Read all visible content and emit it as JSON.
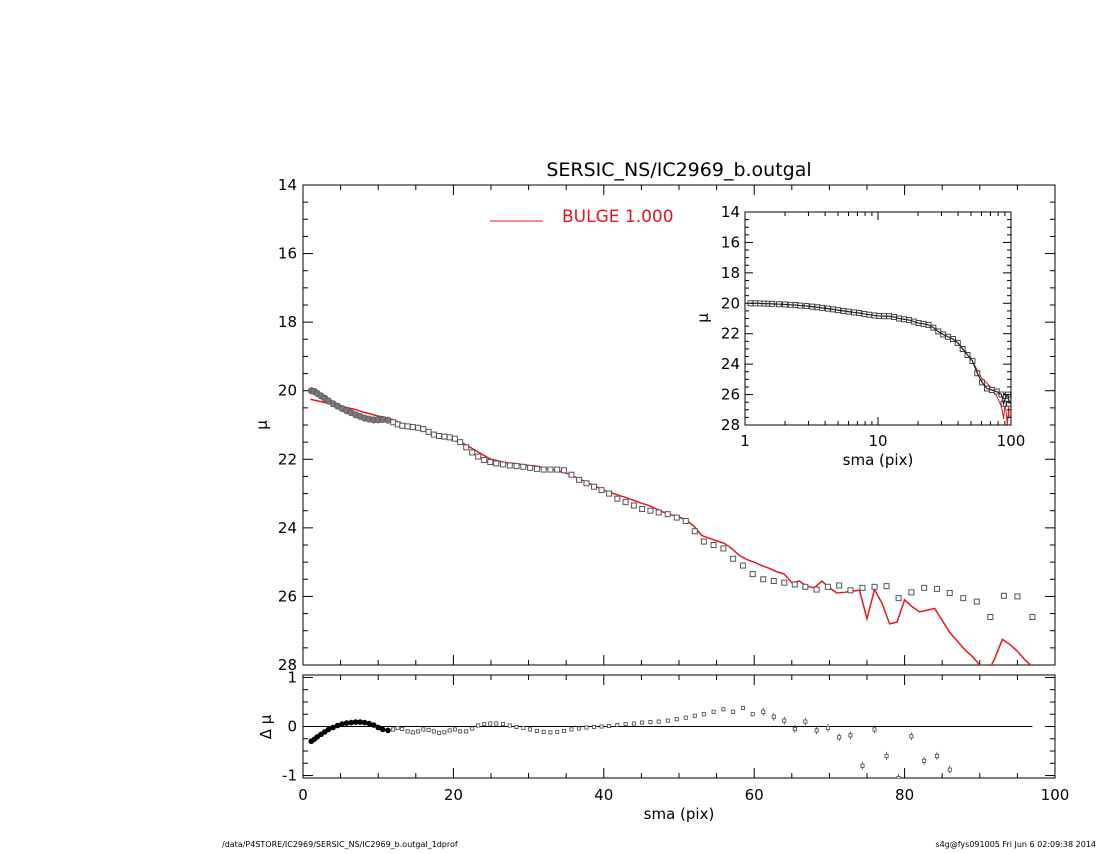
{
  "footer": {
    "left": "/data/P4STORE/IC2969/SERSIC_NS/IC2969_b.outgal_1dprof",
    "right": "s4g@fys091005  Fri Jun  6 02:09:38 2014"
  },
  "colors": {
    "model": "#e8161c",
    "data": "#555555",
    "axes": "#000000"
  },
  "chart_data": [
    {
      "id": "main",
      "type": "scatter",
      "title": "SERSIC_NS/IC2969_b.outgal",
      "xlabel": "",
      "ylabel": "μ",
      "xlim": [
        0,
        100
      ],
      "ylim": [
        28,
        14
      ],
      "y_inverted": true,
      "xticks": [
        0,
        20,
        40,
        60,
        80,
        100
      ],
      "yticks": [
        14,
        16,
        18,
        20,
        22,
        24,
        26,
        28
      ],
      "legend": {
        "placement": "top-center",
        "entries": [
          {
            "label": "BULGE  1.000",
            "color": "#e8161c"
          }
        ]
      },
      "series": [
        {
          "name": "",
          "kind": "data-points",
          "x": [
            1.1,
            1.5,
            1.9,
            2.4,
            2.9,
            3.4,
            4.0,
            4.6,
            5.2,
            5.8,
            6.4,
            7.0,
            7.6,
            8.2,
            8.8,
            9.4,
            10.0,
            10.6,
            11.3,
            12.0,
            12.6,
            13.2,
            13.9,
            14.6,
            15.3,
            16.0,
            16.7,
            17.4,
            18.1,
            18.8,
            19.5,
            20.2,
            20.9,
            21.7,
            22.5,
            23.3,
            24.1,
            24.9,
            25.7,
            26.6,
            27.5,
            28.4,
            29.3,
            30.2,
            31.1,
            32.0,
            32.9,
            33.8,
            34.7,
            35.7,
            36.7,
            37.7,
            38.7,
            39.7,
            40.7,
            41.8,
            42.9,
            44.0,
            45.1,
            46.2,
            47.3,
            48.5,
            49.7,
            50.9,
            52.1,
            53.3,
            54.6,
            55.9,
            57.2,
            58.5,
            59.8,
            61.2,
            62.6,
            64.0,
            65.4,
            66.8,
            68.3,
            69.8,
            71.3,
            72.8,
            74.4,
            76.0,
            77.6,
            79.2,
            80.9,
            82.6,
            84.3,
            86.0,
            87.8,
            89.6,
            91.4,
            93.2,
            95.0,
            97.0
          ],
          "y": [
            20.0,
            20.02,
            20.08,
            20.15,
            20.22,
            20.3,
            20.38,
            20.45,
            20.52,
            20.58,
            20.64,
            20.7,
            20.75,
            20.8,
            20.83,
            20.85,
            20.85,
            20.84,
            20.86,
            20.92,
            20.98,
            21.02,
            21.04,
            21.06,
            21.08,
            21.12,
            21.2,
            21.28,
            21.32,
            21.34,
            21.36,
            21.4,
            21.5,
            21.65,
            21.8,
            21.92,
            22.02,
            22.08,
            22.12,
            22.15,
            22.18,
            22.2,
            22.22,
            22.25,
            22.28,
            22.3,
            22.3,
            22.3,
            22.32,
            22.45,
            22.6,
            22.7,
            22.8,
            22.9,
            23.0,
            23.15,
            23.25,
            23.35,
            23.45,
            23.5,
            23.55,
            23.6,
            23.7,
            23.8,
            24.1,
            24.4,
            24.5,
            24.6,
            24.9,
            25.1,
            25.35,
            25.5,
            25.55,
            25.6,
            25.65,
            25.72,
            25.8,
            25.72,
            25.68,
            25.82,
            25.75,
            25.72,
            25.7,
            26.05,
            25.88,
            25.75,
            25.78,
            25.9,
            26.05,
            26.15,
            26.6,
            25.98,
            26.0,
            26.6
          ]
        },
        {
          "name": "BULGE  1.000",
          "kind": "model-line",
          "x": [
            1.0,
            2.0,
            3.0,
            4.0,
            5.0,
            6.0,
            7.0,
            8.0,
            9.0,
            10.0,
            11.0,
            12.0,
            13.0,
            14.0,
            15.0,
            16.0,
            17.0,
            18.0,
            19.0,
            20.0,
            21.0,
            22.0,
            23.0,
            24.0,
            25.0,
            26.0,
            27.0,
            28.0,
            29.0,
            30.0,
            31.0,
            32.0,
            33.0,
            34.0,
            35.0,
            36.0,
            37.0,
            38.0,
            39.0,
            40.0,
            41.0,
            42.0,
            43.0,
            44.0,
            45.0,
            46.0,
            47.0,
            48.0,
            49.0,
            50.0,
            51.0,
            52.0,
            53.0,
            54.0,
            55.0,
            56.0,
            57.0,
            58.0,
            59.0,
            60.0,
            61.0,
            62.0,
            63.0,
            64.0,
            65.0,
            66.0,
            67.0,
            68.0,
            69.0,
            70.0,
            71.0,
            72.0,
            73.0,
            74.0,
            75.0,
            76.0,
            77.0,
            78.0,
            79.0,
            80.0,
            81.0,
            82.0,
            83.0,
            84.0,
            85.0,
            86.0,
            87.0,
            88.0,
            89.0,
            90.0,
            91.0,
            92.0,
            93.0,
            94.0,
            95.0,
            96.0,
            97.0
          ],
          "y": [
            20.25,
            20.3,
            20.35,
            20.4,
            20.45,
            20.5,
            20.55,
            20.62,
            20.68,
            20.74,
            20.78,
            20.85,
            20.95,
            21.05,
            21.1,
            21.15,
            21.2,
            21.3,
            21.4,
            21.45,
            21.5,
            21.62,
            21.75,
            21.88,
            22.0,
            22.05,
            22.1,
            22.12,
            22.15,
            22.18,
            22.2,
            22.25,
            22.3,
            22.35,
            22.4,
            22.5,
            22.6,
            22.7,
            22.8,
            22.9,
            22.98,
            23.05,
            23.12,
            23.2,
            23.28,
            23.35,
            23.45,
            23.55,
            23.62,
            23.68,
            23.78,
            23.95,
            24.22,
            24.3,
            24.38,
            24.45,
            24.6,
            24.8,
            24.92,
            25.0,
            25.1,
            25.18,
            25.28,
            25.35,
            25.6,
            25.55,
            25.7,
            25.75,
            25.55,
            25.75,
            25.9,
            25.88,
            25.85,
            25.82,
            26.65,
            25.8,
            26.2,
            26.8,
            26.75,
            26.1,
            26.3,
            26.45,
            26.4,
            26.35,
            26.7,
            27.05,
            27.3,
            27.55,
            27.75,
            28.0,
            28.25,
            27.8,
            27.25,
            27.4,
            27.6,
            27.85,
            28.05
          ]
        }
      ]
    },
    {
      "id": "inset",
      "type": "scatter",
      "title": "",
      "xlabel": "sma (pix)",
      "ylabel": "μ",
      "xscale": "log",
      "xlim": [
        1,
        100
      ],
      "ylim": [
        28,
        14
      ],
      "y_inverted": true,
      "xticks": [
        1,
        10,
        100
      ],
      "yticks": [
        14,
        16,
        18,
        20,
        22,
        24,
        26,
        28
      ],
      "series": [
        {
          "name": "",
          "kind": "data-points",
          "x": [
            1.1,
            1.2,
            1.3,
            1.4,
            1.5,
            1.6,
            1.8,
            2.0,
            2.2,
            2.4,
            2.6,
            2.9,
            3.2,
            3.5,
            3.8,
            4.2,
            4.6,
            5.0,
            5.5,
            6.0,
            6.6,
            7.2,
            7.9,
            8.6,
            9.4,
            10.2,
            11.1,
            12.1,
            13.2,
            14.4,
            15.7,
            17.1,
            18.6,
            20.2,
            22.0,
            24.0,
            26.1,
            28.4,
            30.9,
            33.6,
            36.6,
            39.8,
            43.3,
            47.1,
            51.3,
            55.8,
            60.7,
            66.0,
            71.8,
            78.1,
            85.0,
            88.0,
            92.0,
            95.0,
            97.0
          ],
          "y": [
            20.0,
            20.0,
            20.01,
            20.02,
            20.03,
            20.04,
            20.06,
            20.08,
            20.1,
            20.12,
            20.15,
            20.18,
            20.22,
            20.26,
            20.3,
            20.35,
            20.4,
            20.45,
            20.5,
            20.55,
            20.6,
            20.64,
            20.7,
            20.75,
            20.8,
            20.83,
            20.85,
            20.85,
            20.9,
            21.0,
            21.05,
            21.1,
            21.2,
            21.3,
            21.35,
            21.42,
            21.6,
            21.85,
            22.05,
            22.2,
            22.35,
            22.6,
            23.0,
            23.4,
            23.8,
            24.6,
            25.2,
            25.6,
            25.7,
            25.8,
            26.0,
            26.6,
            26.1,
            26.0,
            26.6
          ]
        },
        {
          "name": "",
          "kind": "model-line",
          "x": [
            1.1,
            2.0,
            3.0,
            4.0,
            5.0,
            6.0,
            8.0,
            10.0,
            12.0,
            15.0,
            18.0,
            22.0,
            26.0,
            30.0,
            35.0,
            40.0,
            45.0,
            50.0,
            55.0,
            60.0,
            65.0,
            70.0,
            75.0,
            80.0,
            85.0,
            88.0,
            90.0,
            92.0,
            94.0,
            96.0,
            97.0
          ],
          "y": [
            20.0,
            20.08,
            20.2,
            20.35,
            20.45,
            20.55,
            20.72,
            20.82,
            20.88,
            21.05,
            21.2,
            21.4,
            21.7,
            22.0,
            22.3,
            22.6,
            23.1,
            23.6,
            24.3,
            24.9,
            25.2,
            25.5,
            25.8,
            26.3,
            26.8,
            27.6,
            26.6,
            27.2,
            28.0,
            26.8,
            27.5
          ]
        }
      ]
    },
    {
      "id": "residual",
      "type": "scatter",
      "title": "",
      "xlabel": "sma (pix)",
      "ylabel": "Δ μ",
      "xlim": [
        0,
        100
      ],
      "ylim": [
        -1.05,
        1.05
      ],
      "xticks": [
        0,
        20,
        40,
        60,
        80,
        100
      ],
      "yticks": [
        -1,
        0,
        1
      ],
      "zero_line": true,
      "series": [
        {
          "name": "",
          "kind": "residual-points",
          "x": [
            1.1,
            1.5,
            1.9,
            2.4,
            2.9,
            3.4,
            4.0,
            4.6,
            5.2,
            5.8,
            6.4,
            7.0,
            7.6,
            8.2,
            8.8,
            9.4,
            10.0,
            10.6,
            11.3,
            12.0,
            12.6,
            13.2,
            13.9,
            14.6,
            15.3,
            16.0,
            16.7,
            17.4,
            18.1,
            18.8,
            19.5,
            20.2,
            20.9,
            21.7,
            22.5,
            23.3,
            24.1,
            24.9,
            25.7,
            26.6,
            27.5,
            28.4,
            29.3,
            30.2,
            31.1,
            32.0,
            32.9,
            33.8,
            34.7,
            35.7,
            36.7,
            37.7,
            38.7,
            39.7,
            40.7,
            41.8,
            42.9,
            44.0,
            45.1,
            46.2,
            47.3,
            48.5,
            49.7,
            50.9,
            52.1,
            53.3,
            54.6,
            55.9,
            57.2,
            58.5,
            59.8,
            61.2,
            62.6,
            64.0,
            65.4,
            66.8,
            68.3,
            69.8,
            71.3,
            72.8,
            74.4,
            76.0,
            77.6,
            79.2,
            80.9,
            82.6,
            84.3,
            86.0
          ],
          "y": [
            -0.3,
            -0.26,
            -0.21,
            -0.16,
            -0.11,
            -0.06,
            -0.02,
            0.02,
            0.05,
            0.07,
            0.08,
            0.09,
            0.09,
            0.08,
            0.06,
            0.03,
            -0.02,
            -0.06,
            -0.08,
            -0.06,
            -0.03,
            -0.05,
            -0.1,
            -0.12,
            -0.1,
            -0.06,
            -0.07,
            -0.1,
            -0.13,
            -0.12,
            -0.08,
            -0.06,
            -0.1,
            -0.1,
            -0.04,
            0.02,
            0.05,
            0.06,
            0.06,
            0.05,
            0.02,
            -0.01,
            -0.03,
            -0.06,
            -0.09,
            -0.11,
            -0.12,
            -0.11,
            -0.09,
            -0.06,
            -0.04,
            -0.02,
            -0.01,
            0.0,
            0.01,
            0.03,
            0.05,
            0.06,
            0.08,
            0.09,
            0.1,
            0.12,
            0.15,
            0.18,
            0.22,
            0.25,
            0.3,
            0.35,
            0.3,
            0.38,
            0.25,
            0.3,
            0.2,
            0.12,
            -0.05,
            0.1,
            -0.08,
            -0.03,
            -0.22,
            -0.18,
            -0.8,
            -0.06,
            -0.6,
            -1.05,
            -0.2,
            -0.7,
            -0.6,
            -0.88
          ]
        }
      ]
    }
  ]
}
